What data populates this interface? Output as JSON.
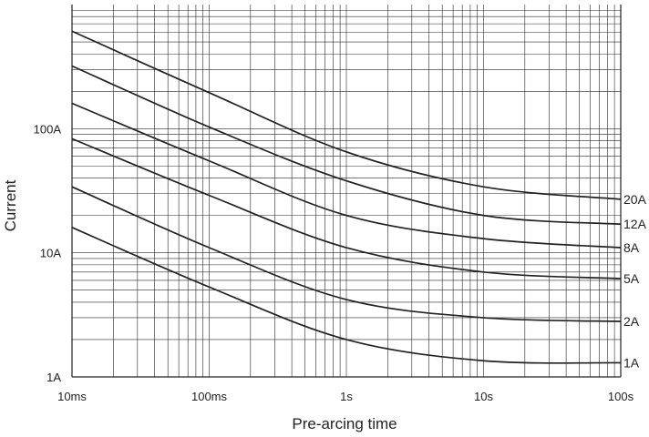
{
  "chart_data": {
    "type": "line",
    "xlabel": "Pre-arcing time",
    "ylabel": "Current",
    "x_scale": "log",
    "y_scale": "log",
    "xlim": [
      "10ms",
      "100s"
    ],
    "ylim": [
      "1A",
      "1000A"
    ],
    "x_ticks": [
      "10ms",
      "100ms",
      "1s",
      "10s",
      "100s"
    ],
    "y_ticks": [
      "1A",
      "10A",
      "100A"
    ],
    "grid": true,
    "series": [
      {
        "name": "20A",
        "x": [
          0.01,
          0.1,
          1,
          10,
          100
        ],
        "y": [
          610,
          195,
          65,
          34,
          27
        ]
      },
      {
        "name": "12A",
        "x": [
          0.01,
          0.1,
          1,
          10,
          100
        ],
        "y": [
          320,
          103,
          38,
          20,
          17
        ]
      },
      {
        "name": "8A",
        "x": [
          0.01,
          0.1,
          1,
          10,
          100
        ],
        "y": [
          160,
          55,
          20,
          13,
          11
        ]
      },
      {
        "name": "5A",
        "x": [
          0.01,
          0.1,
          1,
          10,
          100
        ],
        "y": [
          83,
          29,
          11,
          7,
          6.2
        ]
      },
      {
        "name": "2A",
        "x": [
          0.01,
          0.1,
          1,
          10,
          100
        ],
        "y": [
          34,
          11,
          4.2,
          3,
          2.8
        ]
      },
      {
        "name": "1A",
        "x": [
          0.01,
          0.1,
          1,
          10,
          100
        ],
        "y": [
          16,
          5.3,
          2,
          1.35,
          1.3
        ]
      }
    ]
  }
}
